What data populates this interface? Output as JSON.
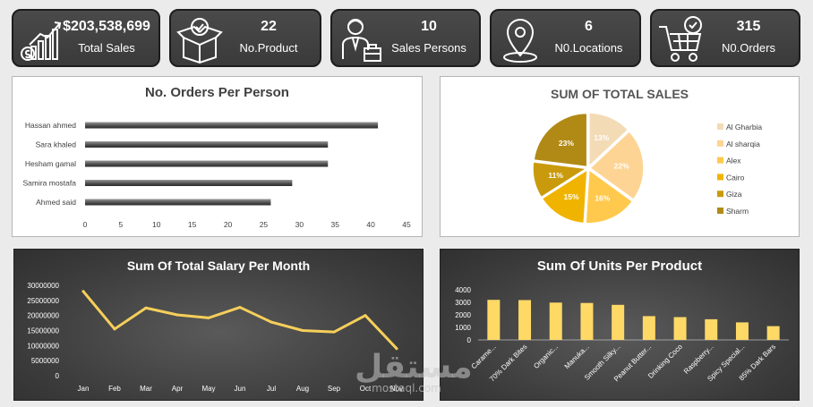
{
  "kpis": [
    {
      "value": "$203,538,699",
      "label": "Total Sales",
      "icon": "money-chart-icon"
    },
    {
      "value": "22",
      "label": "No.Product",
      "icon": "product-box-icon"
    },
    {
      "value": "10",
      "label": "Sales Persons",
      "icon": "salesperson-icon"
    },
    {
      "value": "6",
      "label": "N0.Locations",
      "icon": "location-pin-icon"
    },
    {
      "value": "315",
      "label": "N0.Orders",
      "icon": "shopping-cart-icon"
    }
  ],
  "chart_data": [
    {
      "type": "bar",
      "orientation": "horizontal",
      "title": "No. Orders Per Person",
      "categories": [
        "Hassan ahmed",
        "Sara khaled",
        "Hesham gamal",
        "Samira mostafa",
        "Ahmed said"
      ],
      "values": [
        41,
        34,
        34,
        29,
        26
      ],
      "xlim": [
        0,
        45
      ],
      "xticks": [
        "0",
        "5",
        "10",
        "15",
        "20",
        "25",
        "30",
        "35",
        "40",
        "45"
      ],
      "color": "#555555"
    },
    {
      "type": "pie",
      "title": "SUM OF TOTAL SALES",
      "labels": [
        "Al Gharbia",
        "Al sharqia",
        "Alex",
        "Cairo",
        "Giza",
        "Sharm"
      ],
      "values": [
        13,
        22,
        16,
        15,
        11,
        23
      ],
      "pct_labels": [
        "13%",
        "22%",
        "16%",
        "15%",
        "11%",
        "23%"
      ],
      "colors": [
        "#f3dbb6",
        "#fdd493",
        "#ffc94d",
        "#f0b400",
        "#c99b0c",
        "#b18a16"
      ],
      "legend": "right"
    },
    {
      "type": "line",
      "title": "Sum Of Total Salary Per Month",
      "categories": [
        "Jan",
        "Feb",
        "Mar",
        "Apr",
        "May",
        "Jun",
        "Jul",
        "Aug",
        "Sep",
        "Oct",
        "Nov"
      ],
      "values": [
        28000000,
        15500000,
        22500000,
        20200000,
        19200000,
        22700000,
        17800000,
        15000000,
        14500000,
        20000000,
        9000000
      ],
      "ylim": [
        0,
        30000000
      ],
      "yticks": [
        "0",
        "5000000",
        "10000000",
        "15000000",
        "20000000",
        "25000000",
        "30000000"
      ],
      "color": "#f6cf5a"
    },
    {
      "type": "bar",
      "title": "Sum Of Units Per Product",
      "categories": [
        "Carame...",
        "70% Dark Bites",
        "Organic...",
        "Manuka...",
        "Smooth Silky...",
        "Peanut Butter...",
        "Drinking Coco",
        "Raspberry...",
        "Spicy Special...",
        "85% Dark Bars"
      ],
      "values": [
        3200,
        3180,
        2980,
        2950,
        2800,
        1900,
        1820,
        1650,
        1400,
        1100
      ],
      "ylim": [
        0,
        4000
      ],
      "yticks": [
        "0",
        "1000",
        "2000",
        "3000",
        "4000"
      ],
      "color": "#ffd966"
    }
  ],
  "watermark": {
    "arabic": "مستقل",
    "latin": "mostaql.com"
  }
}
